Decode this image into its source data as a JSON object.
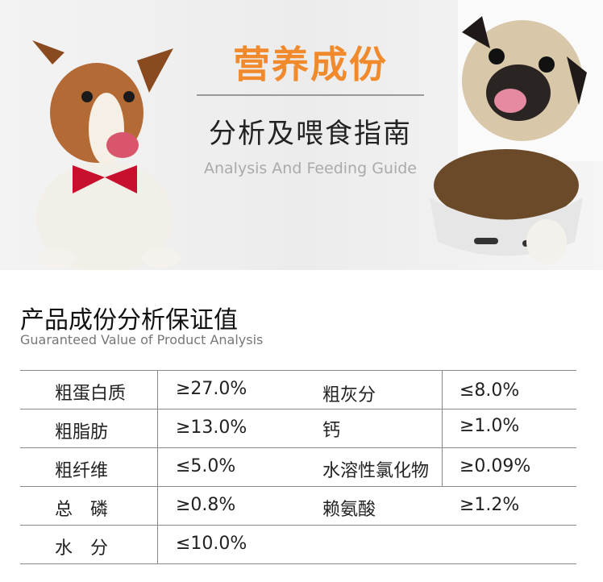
{
  "hero": {
    "title": "营养成份",
    "subtitle": "分析及喂食指南",
    "subtitle_en": "Analysis And Feeding Guide",
    "accent_color": "#f08a2c"
  },
  "section": {
    "title": "产品成份分析保证值",
    "title_en": "Guaranteed Value of Product Analysis"
  },
  "table": {
    "rows": [
      {
        "label1": "粗蛋白质",
        "value1": "≥27.0%",
        "label2": "粗灰分",
        "value2": "≤8.0%"
      },
      {
        "label1": "粗脂肪",
        "value1": "≥13.0%",
        "label2": "钙",
        "value2": "≥1.0%"
      },
      {
        "label1": "粗纤维",
        "value1": "≤5.0%",
        "label2": "水溶性氯化物",
        "value2": "≥0.09%"
      },
      {
        "label1": "总　磷",
        "value1": "≥0.8%",
        "label2": "赖氨酸",
        "value2": "≥1.2%"
      },
      {
        "label1": "水　分",
        "value1": "≤10.0%"
      }
    ]
  }
}
